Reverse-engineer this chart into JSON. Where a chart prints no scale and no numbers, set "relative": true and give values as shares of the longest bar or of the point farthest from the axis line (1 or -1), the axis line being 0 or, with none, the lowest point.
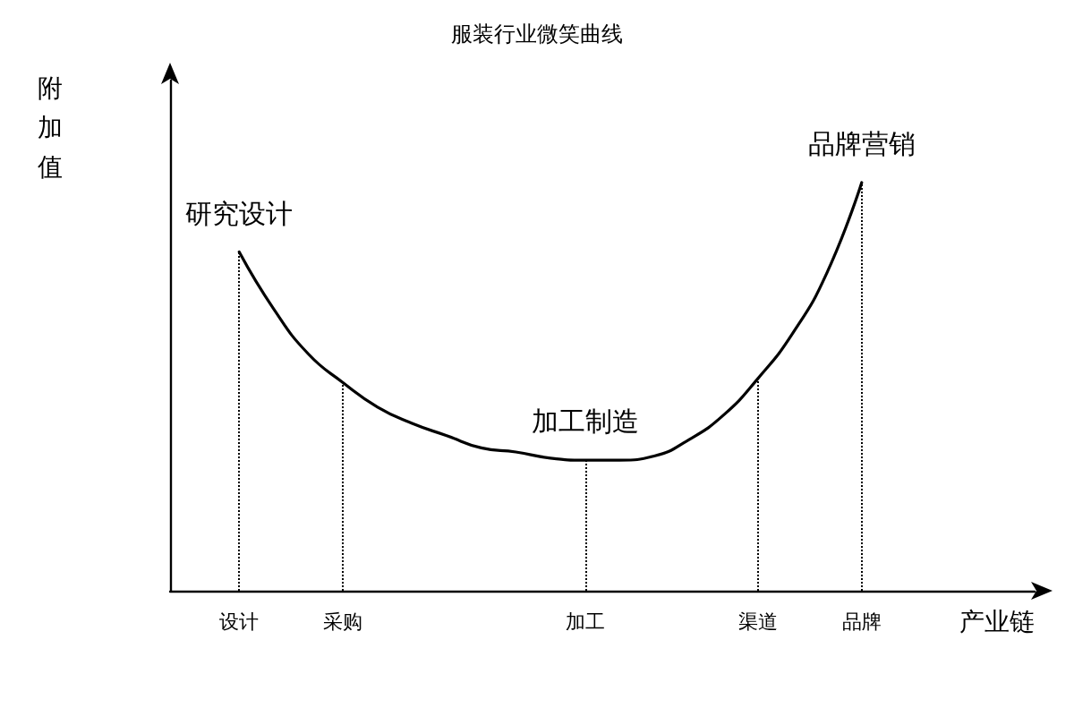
{
  "chart_data": {
    "type": "line",
    "title": "服装行业微笑曲线",
    "xlabel": "产业链",
    "ylabel": "附加值",
    "relative": true,
    "marker": "none",
    "line_style": "solid",
    "grid": false,
    "categories": [
      null,
      null,
      "设计",
      null,
      null,
      "采购",
      null,
      null,
      null,
      null,
      null,
      null,
      "加工",
      null,
      null,
      null,
      null,
      "渠道",
      null,
      null,
      "品牌",
      null,
      null,
      null,
      null,
      null
    ],
    "series": [
      {
        "color": "#000000",
        "values": [
          null,
          null,
          0.83,
          0.69,
          0.58,
          0.51,
          0.45,
          0.41,
          0.38,
          0.35,
          0.34,
          0.325,
          0.32,
          0.32,
          0.33,
          0.37,
          0.43,
          0.52,
          0.63,
          0.78,
          1,
          null,
          null,
          null,
          null,
          null
        ]
      }
    ],
    "ref_lines": [
      {
        "axis": "x",
        "value": "设计",
        "line_style": "dotted",
        "color": "#000000"
      },
      {
        "axis": "x",
        "value": "采购",
        "line_style": "dotted",
        "color": "#000000"
      },
      {
        "axis": "x",
        "value": "加工",
        "line_style": "dotted",
        "color": "#000000"
      },
      {
        "axis": "x",
        "value": "渠道",
        "line_style": "dotted",
        "color": "#000000"
      },
      {
        "axis": "x",
        "value": "品牌",
        "line_style": "dotted",
        "color": "#000000"
      }
    ],
    "annotations": [
      {
        "text": "研究设计",
        "x": "设计",
        "y": 0.83
      },
      {
        "text": "加工制造",
        "x": "加工",
        "y": 0.32
      },
      {
        "text": "品牌营销",
        "x": "品牌",
        "y": 1
      }
    ]
  }
}
